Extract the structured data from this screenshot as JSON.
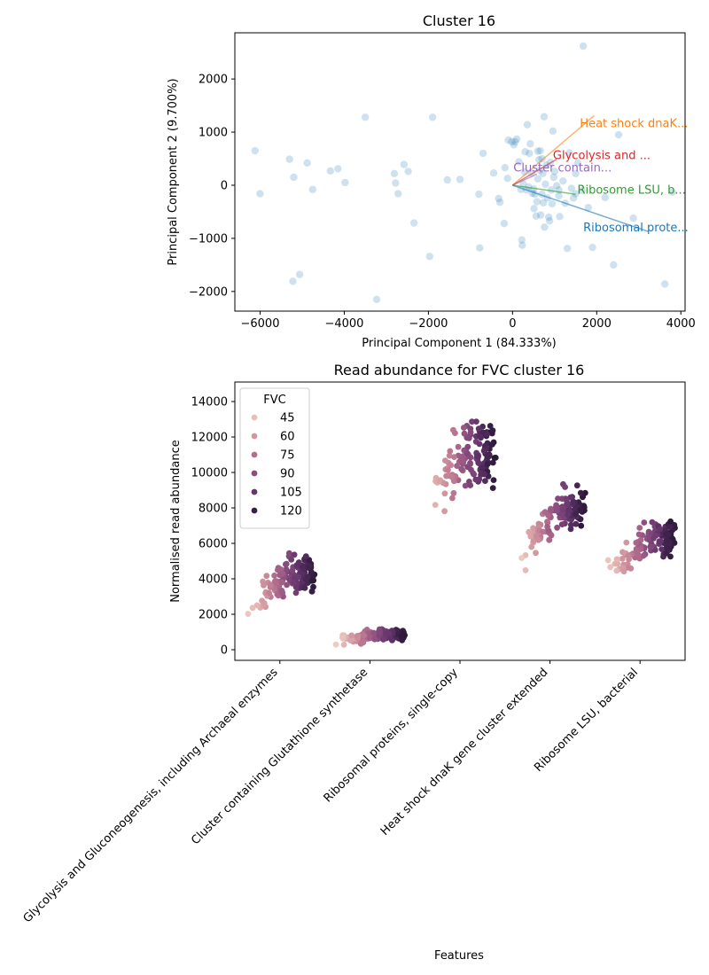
{
  "chart_data": [
    {
      "type": "scatter",
      "title": "Cluster 16",
      "xlabel": "Principal Component 1 (84.333%)",
      "ylabel": "Principal Component 2 (9.700%)",
      "xlim": [
        -6600,
        4100
      ],
      "ylim": [
        -2370,
        2870
      ],
      "xticks": [
        -6000,
        -4000,
        -2000,
        0,
        2000,
        4000
      ],
      "yticks": [
        -2000,
        -1000,
        0,
        1000,
        2000
      ],
      "point_color": "#1f77b4",
      "points": [
        [
          -6120,
          650
        ],
        [
          -6000,
          -160
        ],
        [
          -5300,
          490
        ],
        [
          -5200,
          150
        ],
        [
          -5220,
          -1810
        ],
        [
          -5060,
          -1680
        ],
        [
          -4880,
          420
        ],
        [
          -4750,
          -80
        ],
        [
          -4330,
          270
        ],
        [
          -4150,
          310
        ],
        [
          -3980,
          50
        ],
        [
          -3500,
          1280
        ],
        [
          -3230,
          -2150
        ],
        [
          -2810,
          220
        ],
        [
          -2780,
          40
        ],
        [
          -2720,
          -160
        ],
        [
          -2580,
          390
        ],
        [
          -2480,
          260
        ],
        [
          -2340,
          -710
        ],
        [
          -1970,
          -1340
        ],
        [
          -1900,
          1280
        ],
        [
          -1550,
          100
        ],
        [
          -1250,
          110
        ],
        [
          -800,
          -170
        ],
        [
          -780,
          -1180
        ],
        [
          -700,
          600
        ],
        [
          -450,
          230
        ],
        [
          -330,
          -250
        ],
        [
          -300,
          -320
        ],
        [
          -200,
          -720
        ],
        [
          -180,
          330
        ],
        [
          -120,
          130
        ],
        [
          -100,
          850
        ],
        [
          -20,
          820
        ],
        [
          30,
          760
        ],
        [
          60,
          820
        ],
        [
          100,
          870
        ],
        [
          150,
          440
        ],
        [
          200,
          -80
        ],
        [
          220,
          -1030
        ],
        [
          230,
          -1130
        ],
        [
          250,
          30
        ],
        [
          280,
          250
        ],
        [
          300,
          630
        ],
        [
          330,
          -90
        ],
        [
          350,
          1140
        ],
        [
          380,
          -30
        ],
        [
          400,
          600
        ],
        [
          420,
          780
        ],
        [
          450,
          230
        ],
        [
          470,
          -150
        ],
        [
          500,
          -70
        ],
        [
          510,
          -440
        ],
        [
          530,
          -170
        ],
        [
          560,
          -580
        ],
        [
          580,
          -310
        ],
        [
          600,
          120
        ],
        [
          630,
          480
        ],
        [
          650,
          280
        ],
        [
          660,
          650
        ],
        [
          670,
          -560
        ],
        [
          700,
          -170
        ],
        [
          720,
          220
        ],
        [
          730,
          -330
        ],
        [
          750,
          1290
        ],
        [
          760,
          -790
        ],
        [
          780,
          20
        ],
        [
          800,
          380
        ],
        [
          830,
          -240
        ],
        [
          860,
          -600
        ],
        [
          880,
          -670
        ],
        [
          900,
          430
        ],
        [
          920,
          -90
        ],
        [
          940,
          -350
        ],
        [
          960,
          1020
        ],
        [
          980,
          150
        ],
        [
          1000,
          260
        ],
        [
          1050,
          -10
        ],
        [
          1100,
          -200
        ],
        [
          1120,
          -590
        ],
        [
          1200,
          80
        ],
        [
          1250,
          -340
        ],
        [
          1300,
          -1190
        ],
        [
          1350,
          610
        ],
        [
          1400,
          -60
        ],
        [
          1450,
          -240
        ],
        [
          1550,
          420
        ],
        [
          1650,
          -100
        ],
        [
          1680,
          2620
        ],
        [
          1800,
          -420
        ],
        [
          1900,
          -1170
        ],
        [
          2200,
          -230
        ],
        [
          2400,
          -1500
        ],
        [
          2520,
          950
        ],
        [
          2870,
          -620
        ],
        [
          3620,
          -1860
        ],
        [
          3800,
          -130
        ],
        [
          1100,
          -90
        ],
        [
          1500,
          -160
        ],
        [
          600,
          640
        ],
        [
          700,
          500
        ],
        [
          1500,
          220
        ]
      ],
      "origin": [
        0,
        0
      ],
      "vectors": [
        {
          "name": "Heat shock dnaK...",
          "color": "#ff7f0e",
          "x": 1940,
          "y": 1310,
          "label_x": 1600,
          "label_y": 1090
        },
        {
          "name": "Glycolysis and ...",
          "color": "#d62728",
          "x": 1050,
          "y": 490,
          "label_x": 960,
          "label_y": 490
        },
        {
          "name": "Cluster contain...",
          "color": "#9467bd",
          "x": 580,
          "y": 210,
          "label_x": 20,
          "label_y": 260
        },
        {
          "name": "Ribosome LSU, b...",
          "color": "#2ca02c",
          "x": 1500,
          "y": -170,
          "label_x": 1540,
          "label_y": -160
        },
        {
          "name": "Ribosomal prote...",
          "color": "#1f77b4",
          "x": 3220,
          "y": -870,
          "label_x": 1680,
          "label_y": -870
        }
      ]
    },
    {
      "type": "strip",
      "title": "Read abundance for FVC cluster 16",
      "xlabel": "Features",
      "ylabel": "Normalised read abundance",
      "ylim": [
        -600,
        15100
      ],
      "yticks": [
        0,
        2000,
        4000,
        6000,
        8000,
        10000,
        12000,
        14000
      ],
      "categories": [
        "Glycolysis and Gluconeogenesis, including Archaeal enzymes",
        "Cluster containing Glutathione synthetase",
        "Ribosomal proteins, single-copy",
        "Heat shock dnaK gene cluster extended",
        "Ribosome LSU, bacterial"
      ],
      "hue_name": "FVC",
      "hue_range": [
        37,
        125
      ],
      "legend": {
        "title": "FVC",
        "position": "upper left",
        "entries": [
          45,
          60,
          75,
          90,
          105,
          120
        ]
      },
      "color_scale": [
        "#f0d3c6",
        "#dca7a8",
        "#b8738f",
        "#8c4e80",
        "#5e3268",
        "#2a1838"
      ],
      "groups": [
        {
          "category": "Glycolysis and Gluconeogenesis, including Archaeal enzymes",
          "n": 140,
          "median": 4300,
          "spread": 450,
          "low_fvc_median": 2300
        },
        {
          "category": "Cluster containing Glutathione synthetase",
          "n": 140,
          "median": 850,
          "spread": 150,
          "low_fvc_median": 450
        },
        {
          "category": "Ribosomal proteins, single-copy",
          "n": 140,
          "median": 11000,
          "spread": 900,
          "low_fvc_median": 8400
        },
        {
          "category": "Heat shock dnaK gene cluster extended",
          "n": 140,
          "median": 7800,
          "spread": 550,
          "low_fvc_median": 5200
        },
        {
          "category": "Ribosome LSU, bacterial",
          "n": 140,
          "median": 6300,
          "spread": 500,
          "low_fvc_median": 4200
        }
      ]
    }
  ]
}
